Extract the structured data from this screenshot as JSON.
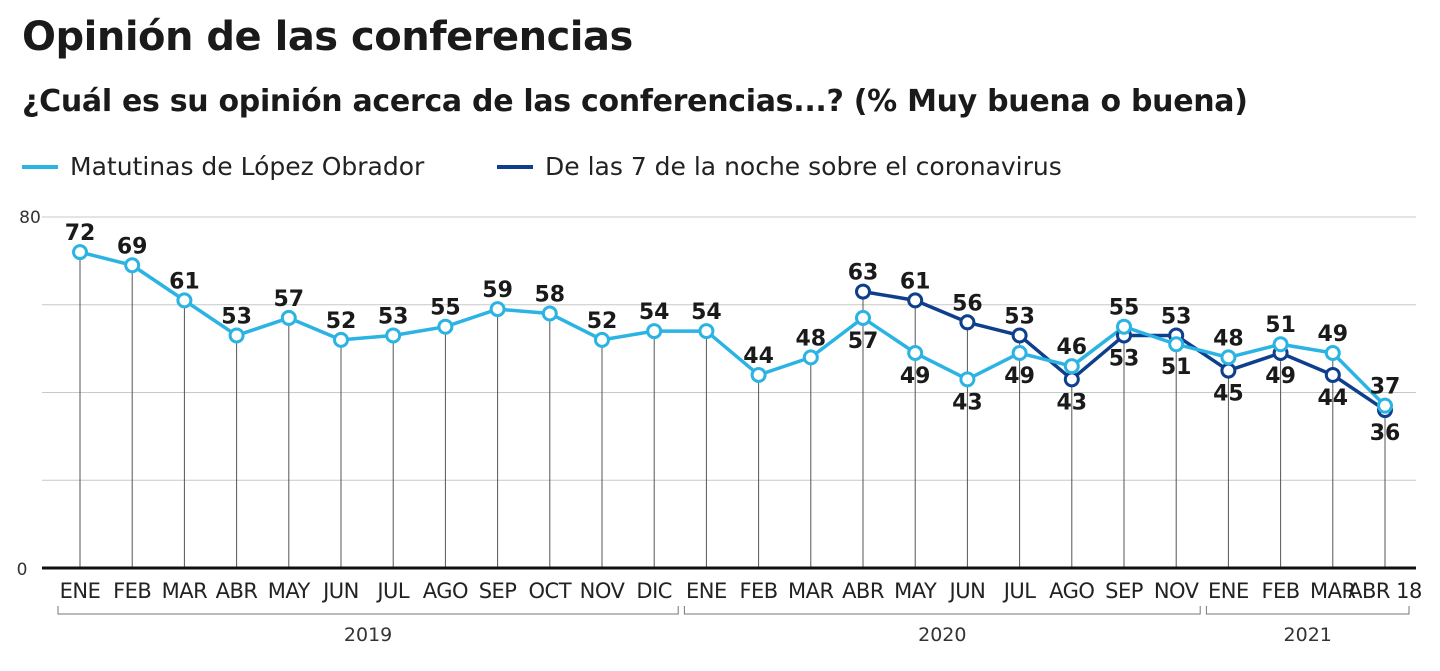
{
  "title": "Opinión de las conferencias",
  "subtitle": "¿Cuál es su opinión acerca de las conferencias...?  (% Muy buena o buena)",
  "colors": {
    "matutinas": "#2bb3e3",
    "noche": "#0e3f8c"
  },
  "chart_data": {
    "type": "line",
    "title": "Opinión de las conferencias",
    "ylim": [
      0,
      80
    ],
    "yticks": [
      "0",
      "80"
    ],
    "grid_values": [
      20,
      40,
      60,
      80
    ],
    "categories": [
      "ENE",
      "FEB",
      "MAR",
      "ABR",
      "MAY",
      "JUN",
      "JUL",
      "AGO",
      "SEP",
      "OCT",
      "NOV",
      "DIC",
      "ENE",
      "FEB",
      "MAR",
      "ABR",
      "MAY",
      "JUN",
      "JUL",
      "AGO",
      "SEP",
      "NOV",
      "ENE",
      "FEB",
      "MAR",
      "ABR 18"
    ],
    "years": [
      {
        "label": "2019",
        "start": 0,
        "end": 11
      },
      {
        "label": "2020",
        "start": 12,
        "end": 21
      },
      {
        "label": "2021",
        "start": 22,
        "end": 25
      }
    ],
    "legend_position": "top-left",
    "series": [
      {
        "name": "Matutinas de López Obrador",
        "color_key": "matutinas",
        "values": [
          72,
          69,
          61,
          53,
          57,
          52,
          53,
          55,
          59,
          58,
          52,
          54,
          54,
          44,
          48,
          57,
          49,
          43,
          49,
          46,
          55,
          51,
          48,
          51,
          49,
          37
        ]
      },
      {
        "name": "De las 7 de la noche sobre el coronavirus",
        "color_key": "noche",
        "values": [
          null,
          null,
          null,
          null,
          null,
          null,
          null,
          null,
          null,
          null,
          null,
          null,
          null,
          null,
          null,
          63,
          61,
          56,
          53,
          43,
          53,
          53,
          45,
          49,
          44,
          36
        ]
      }
    ]
  }
}
